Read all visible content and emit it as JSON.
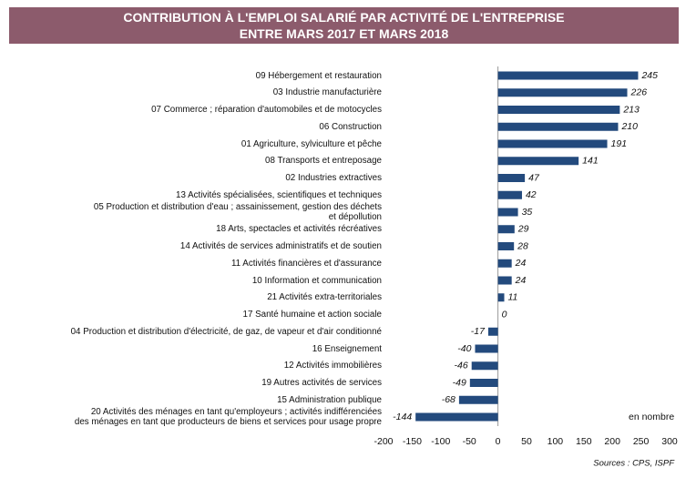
{
  "chart_data": {
    "type": "barh",
    "title": "CONTRIBUTION À L'EMPLOI SALARIÉ PAR ACTIVITÉ DE L'ENTREPRISE\nENTRE MARS 2017 ET MARS 2018",
    "unit_note": "en nombre",
    "source": "Sources : CPS, ISPF",
    "color": "#234a7d",
    "categories": [
      "09 Hébergement et restauration",
      "03 Industrie manufacturière",
      "07 Commerce ; réparation d'automobiles et de motocycles",
      "06 Construction",
      "01 Agriculture, sylviculture et pêche",
      "08 Transports et entreposage",
      "02 Industries extractives",
      "13 Activités spécialisées, scientifiques et techniques",
      "05 Production et distribution d'eau ; assainissement, gestion des déchets\net dépollution",
      "18 Arts, spectacles et activités récréatives",
      "14 Activités de services administratifs et de soutien",
      "11 Activités financières et d'assurance",
      "10 Information et communication",
      "21 Activités extra-territoriales",
      "17 Santé humaine et action sociale",
      "04 Production et distribution d'électricité, de gaz, de vapeur et d'air conditionné",
      "16 Enseignement",
      "12 Activités immobilières",
      "19 Autres activités de services",
      "15 Administration publique",
      "20 Activités des ménages en tant qu'employeurs ; activités indifférenciées\ndes ménages en tant que producteurs de biens et services pour usage propre"
    ],
    "values": [
      245,
      226,
      213,
      210,
      191,
      141,
      47,
      42,
      35,
      29,
      28,
      24,
      24,
      11,
      0,
      -17,
      -40,
      -46,
      -49,
      -68,
      -144
    ],
    "xlim": [
      -200,
      300
    ],
    "xticks": [
      -200,
      -150,
      -100,
      -50,
      0,
      50,
      100,
      150,
      200,
      250,
      300
    ]
  }
}
